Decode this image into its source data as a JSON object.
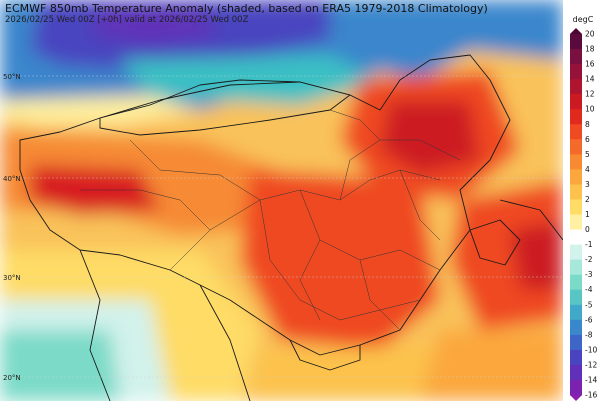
{
  "map": {
    "title": "ECMWF 850mb Temperature Anomaly (shaded, based on ERA5 1979-2018 Climatology)",
    "subtitle": "2026/02/25 Wed 00Z [+0h] valid at 2026/02/25 Wed 00Z",
    "lat_labels": [
      "50°N",
      "40°N",
      "30°N",
      "20°N"
    ]
  },
  "colorbar": {
    "unit": "degC",
    "ticks": [
      "20",
      "18",
      "16",
      "14",
      "12",
      "10",
      "8",
      "6",
      "5",
      "4",
      "3",
      "2",
      "1",
      "0",
      "-1",
      "-2",
      "-3",
      "-4",
      "-5",
      "-6",
      "-8",
      "-10",
      "-12",
      "-14",
      "-16"
    ],
    "colors": [
      "#5a0a3c",
      "#7a1040",
      "#96123a",
      "#b01530",
      "#cc1a22",
      "#e02a1e",
      "#ef4a22",
      "#f46a2a",
      "#f88a32",
      "#fba73e",
      "#fcc24c",
      "#fedc66",
      "#fff0a2",
      "#ffffff",
      "#d2f2ec",
      "#a8e8da",
      "#7cdac8",
      "#58c6c4",
      "#40a8c8",
      "#3a88cc",
      "#3e66c8",
      "#4a44c0",
      "#6030b8",
      "#7c22b0"
    ]
  }
}
